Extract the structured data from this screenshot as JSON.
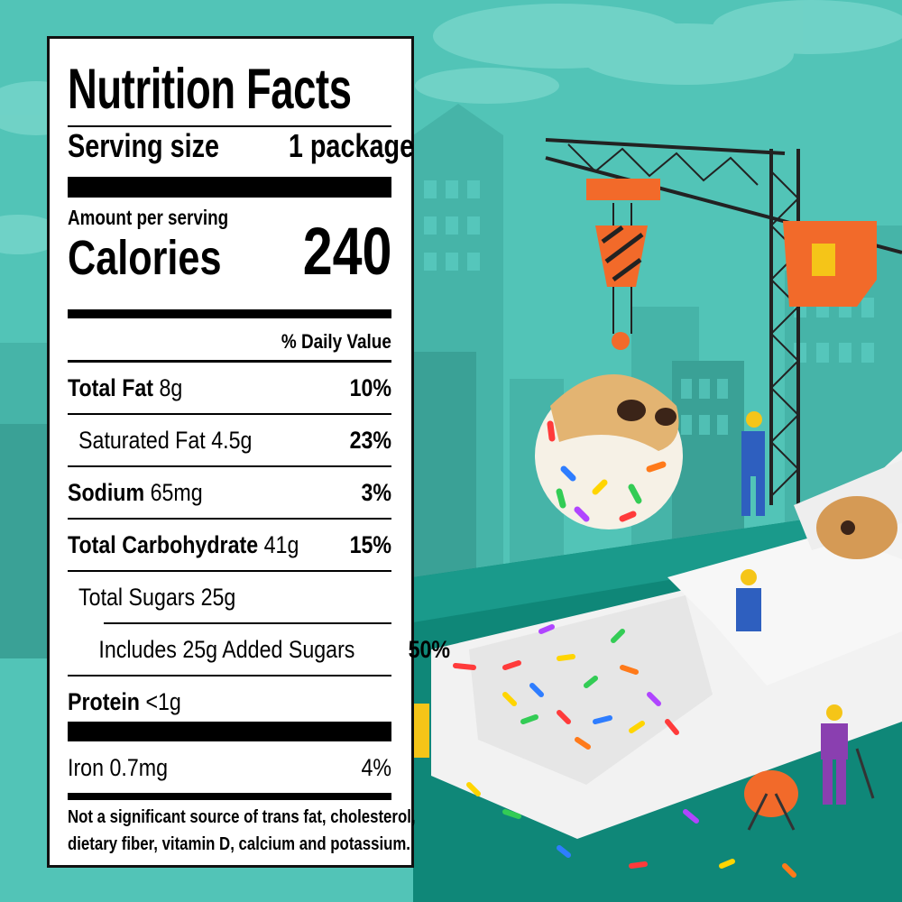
{
  "label": {
    "title": "Nutrition Facts",
    "serving_label": "Serving size",
    "serving_value": "1 package",
    "amount_per_serving": "Amount per serving",
    "calories_label": "Calories",
    "calories_value": "240",
    "daily_value_header": "% Daily Value",
    "nutrients": [
      {
        "name": "Total Fat",
        "amount": "8g",
        "dv": "10%"
      },
      {
        "name": "Saturated Fat",
        "amount": "4.5g",
        "dv": "23%"
      },
      {
        "name": "Sodium",
        "amount": "65mg",
        "dv": "3%"
      },
      {
        "name": "Total Carbohydrate",
        "amount": "41g",
        "dv": "15%"
      },
      {
        "name": "Total Sugars",
        "amount": "25g",
        "dv": ""
      },
      {
        "name": "Includes 25g Added Sugars",
        "amount": "",
        "dv": "50%"
      },
      {
        "name": "Protein",
        "amount": "<1g",
        "dv": ""
      }
    ],
    "vitamins": [
      {
        "name": "Iron",
        "amount": "0.7mg",
        "dv": "4%"
      }
    ],
    "footnote_line1": "Not a significant source of trans fat, cholesterol,",
    "footnote_line2": "dietary fiber, vitamin D, calcium and potassium."
  },
  "colors": {
    "sky": "#4fc1b4",
    "buildings_light": "#5ccdc2",
    "buildings_dark": "#2f9a8f",
    "ground": "#0f8778",
    "crane": "#222222",
    "crane_orange": "#f26a2a"
  }
}
